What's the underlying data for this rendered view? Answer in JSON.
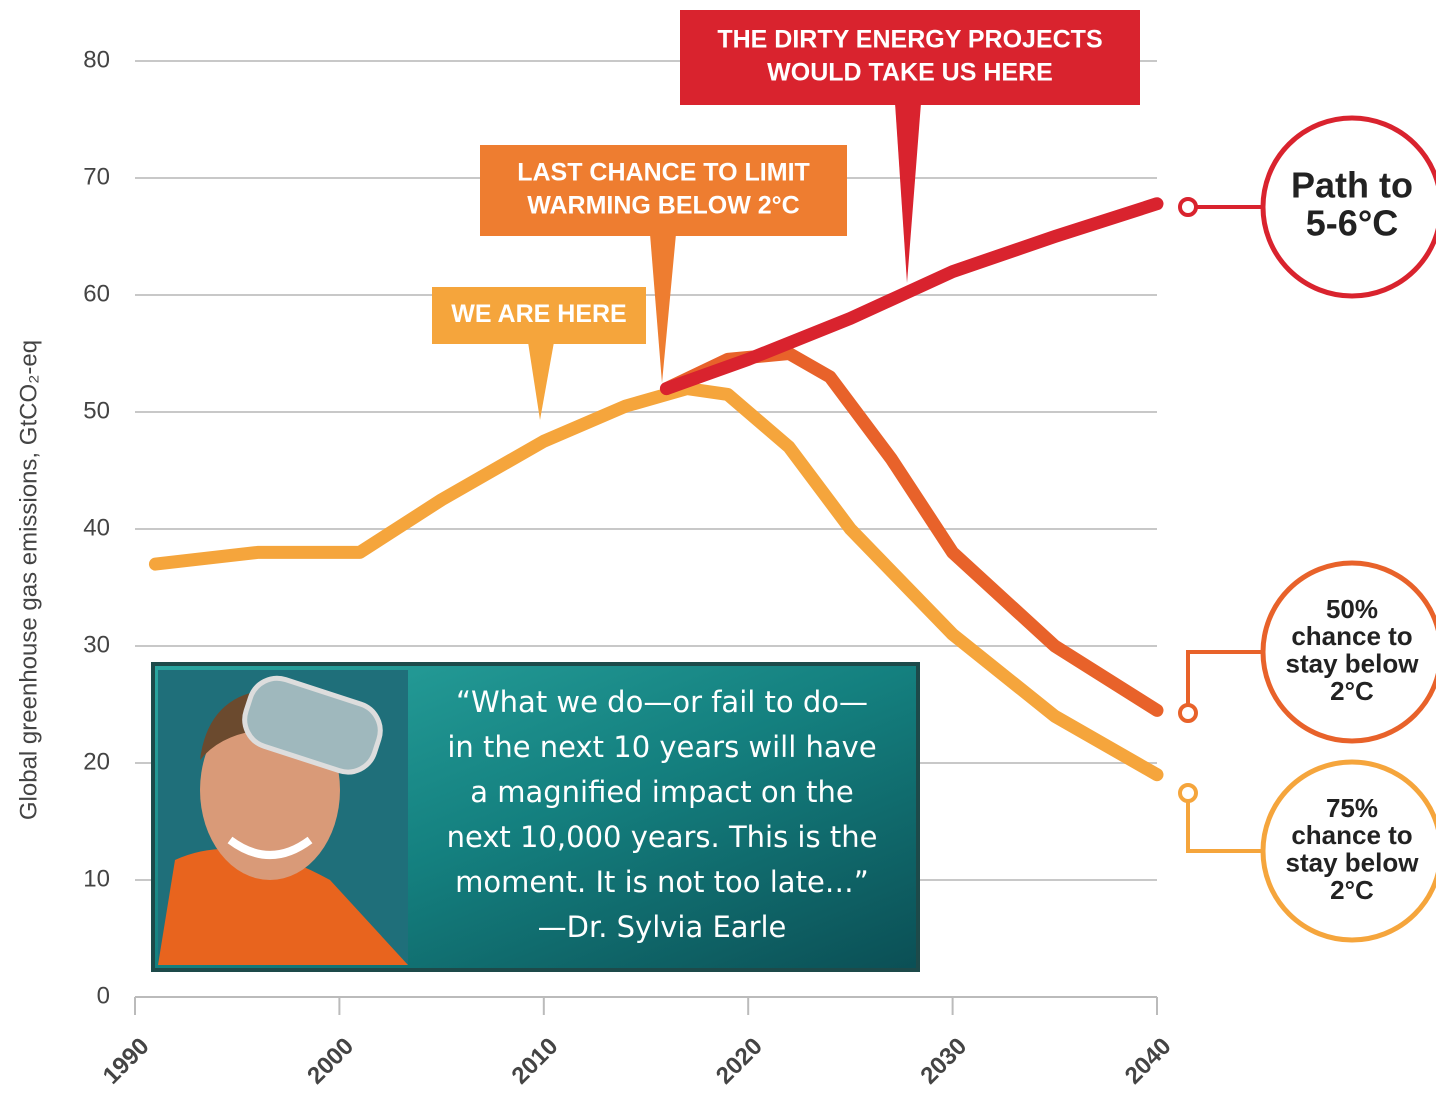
{
  "chart_data": {
    "type": "line",
    "y_label": "Global greenhouse gas emissions, GtCO₂-eq",
    "xlim": [
      1990,
      2040
    ],
    "xticks": [
      1990,
      2000,
      2010,
      2020,
      2030,
      2040
    ],
    "ylim": [
      0,
      80
    ],
    "yticks": [
      0,
      10,
      20,
      30,
      40,
      50,
      60,
      70,
      80
    ],
    "grid": true,
    "series": [
      {
        "color": "#f5a53c",
        "end_label": [
          "75%",
          "chance to",
          "stay below",
          "2°C"
        ],
        "x": [
          1991,
          1996,
          2001,
          2005,
          2010,
          2014,
          2017,
          2019,
          2022,
          2025,
          2030,
          2035,
          2040
        ],
        "values": [
          37,
          38,
          38,
          42.5,
          47.5,
          50.5,
          52,
          51.5,
          47,
          40,
          31,
          24,
          19
        ]
      },
      {
        "color": "#e8622a",
        "end_label": [
          "50%",
          "chance to",
          "stay below",
          "2°C"
        ],
        "x": [
          2016,
          2019,
          2022,
          2024,
          2027,
          2030,
          2035,
          2040
        ],
        "values": [
          52,
          54.5,
          55,
          53,
          46,
          38,
          30,
          24.5
        ]
      },
      {
        "color": "#d9232e",
        "end_label": [
          "Path to",
          "5-6°C"
        ],
        "x": [
          2016,
          2020,
          2025,
          2030,
          2035,
          2040
        ],
        "values": [
          52,
          54.5,
          58,
          62,
          65,
          67.8
        ]
      }
    ],
    "callouts": [
      {
        "lines": [
          "WE ARE HERE"
        ],
        "color": "#f5a53c"
      },
      {
        "lines": [
          "LAST CHANCE TO LIMIT",
          "WARMING BELOW 2°C"
        ],
        "color": "#ee7d30"
      },
      {
        "lines": [
          "THE DIRTY ENERGY PROJECTS",
          "WOULD TAKE US HERE"
        ],
        "color": "#d9232e"
      }
    ],
    "quote": [
      "“What we do—or fail to do—",
      "in the next 10 years will have",
      "a magnified impact on the",
      "next 10,000 years. This is the",
      "moment. It is not too late…”",
      "—Dr. Sylvia Earle"
    ]
  }
}
